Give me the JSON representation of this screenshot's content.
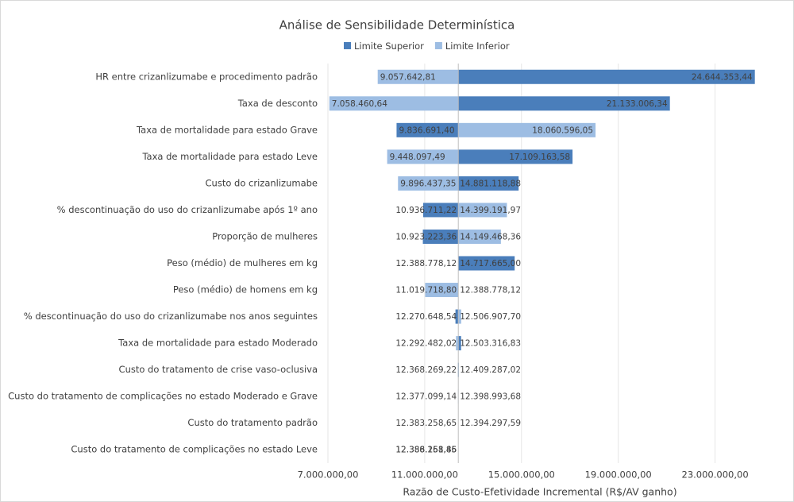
{
  "chart_data": {
    "type": "tornado",
    "title": "Análise de Sensibilidade Determinística",
    "x_label": "Razão de Custo-Efetividade Incremental (R$/AV ganho)",
    "categories": [
      "HR entre crizanlizumabe e procedimento padrão",
      "Taxa de desconto",
      "Taxa de mortalidade para estado Grave",
      "Taxa de mortalidade para estado Leve",
      "Custo do crizanlizumabe",
      "% descontinuação do uso do crizanlizumabe após 1º ano",
      "Proporção de mulheres",
      "Peso (médio) de mulheres em kg",
      "Peso (médio) de homens em kg",
      "% descontinuação do uso do crizanlizumabe nos anos seguintes",
      "Taxa de mortalidade para estado Moderado",
      "Custo do tratamento de crise vaso-oclusiva",
      "Custo do tratamento de complicações no estado Moderado e Grave",
      "Custo do tratamento padrão",
      "Custo do tratamento de complicações no estado Leve"
    ],
    "series": [
      {
        "name": "Limite Superior",
        "color": "#4a7ebb",
        "values": [
          24644353.44,
          21133006.34,
          9836691.4,
          17109163.58,
          14881118.88,
          10936711.22,
          10923223.36,
          14717665.0,
          12388778.12,
          12270648.54,
          12503316.83,
          12409287.02,
          12398993.68,
          12394297.59,
          12388261.46
        ],
        "value_labels": [
          "24.644.353,44",
          "21.133.006,34",
          "9.836.691,40",
          "17.109.163,58",
          "14.881.118,88",
          "10.936.711,22",
          "10.923.223,36",
          "14.717.665,00",
          "12.388.778,12",
          "12.270.648,54",
          "12.503.316,83",
          "12.409.287,02",
          "12.398.993,68",
          "12.394.297,59",
          "12.388.261,46"
        ]
      },
      {
        "name": "Limite Inferior",
        "color": "#9dbde3",
        "values": [
          9057642.81,
          7058460.64,
          18060596.05,
          9448097.49,
          9896437.35,
          14399191.97,
          14149468.36,
          12388778.12,
          11019718.8,
          12506907.7,
          12292482.02,
          12368269.22,
          12377099.14,
          12383258.65,
          12386158.85
        ],
        "value_labels": [
          "9.057.642,81",
          "7.058.460,64",
          "18.060.596,05",
          "9.448.097,49",
          "9.896.437,35",
          "14.399.191,97",
          "14.149.468,36",
          "12.388.778,12",
          "11.019.718,80",
          "12.506.907,70",
          "12.292.482,02",
          "12.368.269,22",
          "12.377.099,14",
          "12.383.258,65",
          "12.386.158,85"
        ]
      }
    ],
    "x_axis_crosses": 12388778.12,
    "xlim": [
      7000000,
      26000000
    ],
    "xticks": [
      {
        "value": 7000000,
        "label": "7.000.000,00"
      },
      {
        "value": 11000000,
        "label": "11.000.000,00"
      },
      {
        "value": 15000000,
        "label": "15.000.000,00"
      },
      {
        "value": 19000000,
        "label": "19.000.000,00"
      },
      {
        "value": 23000000,
        "label": "23.000.000,00"
      }
    ],
    "grid": true,
    "legend": "top"
  }
}
